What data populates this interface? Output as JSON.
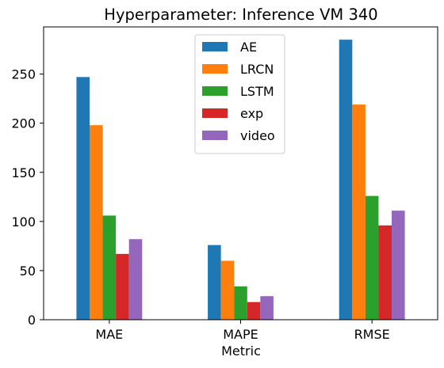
{
  "chart_data": {
    "type": "bar",
    "title": "Hyperparameter: Inference VM 340",
    "xlabel": "Metric",
    "ylabel": "",
    "categories": [
      "MAE",
      "MAPE",
      "RMSE"
    ],
    "ylim": [
      0,
      298
    ],
    "yticks": [
      0,
      50,
      100,
      150,
      200,
      250
    ],
    "legend_position": "top-center",
    "grid": false,
    "series": [
      {
        "name": "AE",
        "color": "#1f77b4",
        "values": [
          247,
          76,
          285
        ]
      },
      {
        "name": "LRCN",
        "color": "#ff7f0e",
        "values": [
          198,
          60,
          219
        ]
      },
      {
        "name": "LSTM",
        "color": "#2ca02c",
        "values": [
          106,
          34,
          126
        ]
      },
      {
        "name": "exp",
        "color": "#d62728",
        "values": [
          67,
          18,
          96
        ]
      },
      {
        "name": "video",
        "color": "#9467bd",
        "values": [
          82,
          24,
          111
        ]
      }
    ]
  }
}
